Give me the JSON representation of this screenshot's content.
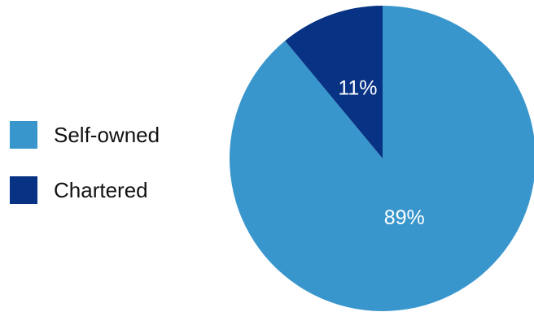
{
  "chart_data": {
    "type": "pie",
    "title": "",
    "categories": [
      "Self-owned",
      "Chartered"
    ],
    "values": [
      89,
      11
    ],
    "value_labels": [
      "89%",
      "11%"
    ],
    "colors": [
      "#3996cc",
      "#083283"
    ],
    "legend_position": "left",
    "start_angle": "12 o'clock",
    "direction": "clockwise, Self-owned first"
  }
}
